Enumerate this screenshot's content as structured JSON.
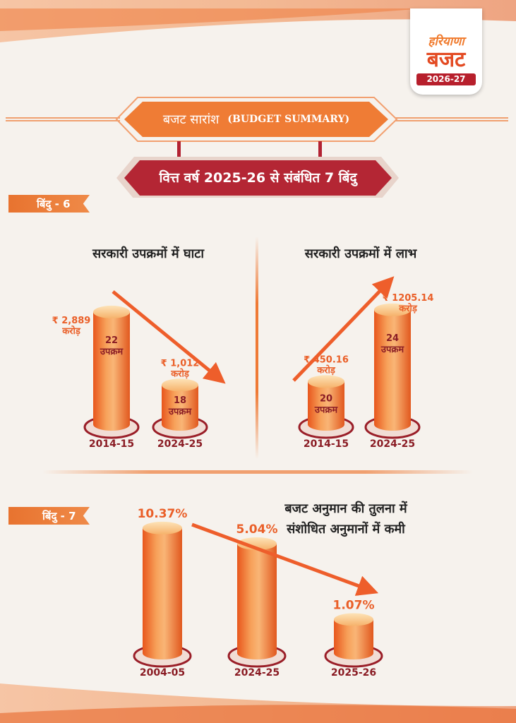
{
  "logo": {
    "line1": "हरियाणा",
    "line2": "बजट",
    "year": "2026-27"
  },
  "header": {
    "summary_hi": "बजट सारांश",
    "summary_en": "(BUDGET SUMMARY)",
    "subtitle": "वित्त वर्ष 2025-26 से संबंधित 7 बिंदु"
  },
  "point6": {
    "tag": "बिंदु - 6"
  },
  "point7": {
    "tag": "बिंदु - 7"
  },
  "colors": {
    "accent": "#f07a2c",
    "dark_red": "#8a1c24",
    "ribbon": "#e9833c",
    "maroon": "#b22232"
  },
  "chart_data": [
    {
      "type": "bar",
      "title": "सरकारी उपक्रमों में घाटा",
      "categories": [
        "2014-15",
        "2024-25"
      ],
      "values": [
        2889,
        1012
      ],
      "value_labels": [
        "₹ 2,889",
        "₹ 1,012"
      ],
      "unit_label": "करोड़",
      "count_values": [
        22,
        18
      ],
      "count_label": "उपक्रम",
      "trend": "down"
    },
    {
      "type": "bar",
      "title": "सरकारी उपक्रमों में लाभ",
      "categories": [
        "2014-15",
        "2024-25"
      ],
      "values": [
        450.16,
        1205.14
      ],
      "value_labels": [
        "₹ 450.16",
        "₹ 1205.14"
      ],
      "unit_label": "करोड़",
      "count_values": [
        20,
        24
      ],
      "count_label": "उपक्रम",
      "trend": "up"
    },
    {
      "type": "bar",
      "title": "बजट अनुमान की तुलना में संशोधित अनुमानों में कमी",
      "title_lines": [
        "बजट अनुमान की तुलना में",
        "संशोधित अनुमानों में कमी"
      ],
      "categories": [
        "2004-05",
        "2024-25",
        "2025-26"
      ],
      "values": [
        10.37,
        5.04,
        1.07
      ],
      "value_labels": [
        "10.37%",
        "5.04%",
        "1.07%"
      ],
      "trend": "down"
    }
  ]
}
